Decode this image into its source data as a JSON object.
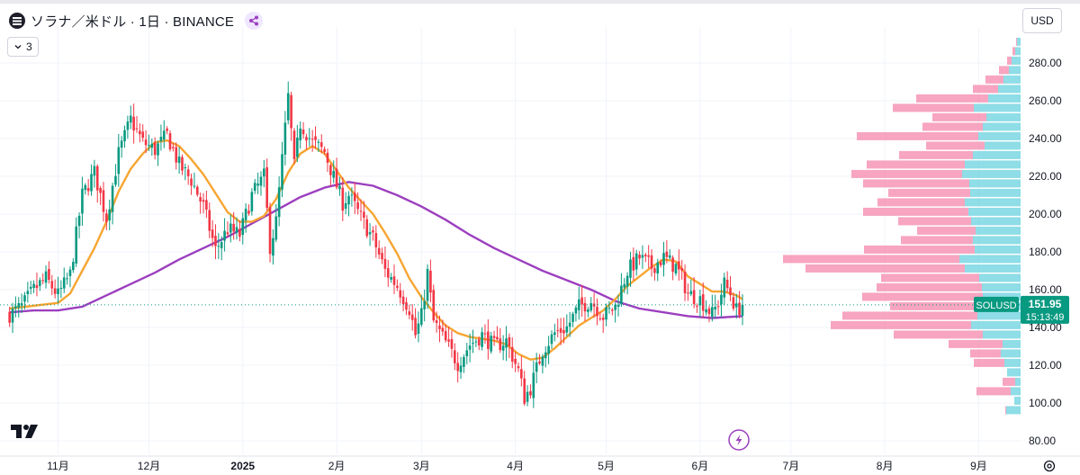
{
  "header": {
    "title": "ソラナ／米ドル · 1日 · BINANCE",
    "collapse_count": "3",
    "currency": "USD"
  },
  "colors": {
    "up": "#089981",
    "down": "#f23645",
    "ma_fast": "#f7a531",
    "ma_slow": "#9c3fbf",
    "vp_up": "#7ad7e3",
    "vp_down": "#f58eb0",
    "price_badge": "#089981"
  },
  "chart_data": {
    "type": "candlestick",
    "title": "ソラナ／米ドル · 1日 · BINANCE",
    "symbol": "SOLUSD",
    "last_price": "151.95",
    "countdown": "15:13:49",
    "ylim": [
      80,
      295
    ],
    "y_ticks": [
      "80.00",
      "100.00",
      "120.00",
      "140.00",
      "160.00",
      "180.00",
      "200.00",
      "220.00",
      "240.00",
      "260.00",
      "280.00"
    ],
    "x_ticks": [
      {
        "label": "11月",
        "index": 0
      },
      {
        "label": "12月",
        "index": 30
      },
      {
        "label": "2025",
        "index": 61
      },
      {
        "label": "2月",
        "index": 92
      },
      {
        "label": "3月",
        "index": 120
      },
      {
        "label": "4月",
        "index": 151
      },
      {
        "label": "5月",
        "index": 181
      },
      {
        "label": "6月",
        "index": 212
      },
      {
        "label": "7月",
        "index": 242
      },
      {
        "label": "8月",
        "index": 273
      },
      {
        "label": "9月",
        "index": 304
      }
    ],
    "anchors": [
      [
        -16,
        147
      ],
      [
        -12,
        151
      ],
      [
        -8,
        160
      ],
      [
        -4,
        166
      ],
      [
        0,
        157
      ],
      [
        4,
        168
      ],
      [
        8,
        210
      ],
      [
        12,
        222
      ],
      [
        16,
        198
      ],
      [
        20,
        232
      ],
      [
        24,
        250
      ],
      [
        28,
        238
      ],
      [
        32,
        234
      ],
      [
        36,
        242
      ],
      [
        40,
        226
      ],
      [
        44,
        218
      ],
      [
        48,
        204
      ],
      [
        52,
        181
      ],
      [
        56,
        192
      ],
      [
        60,
        189
      ],
      [
        64,
        210
      ],
      [
        68,
        220
      ],
      [
        70,
        183
      ],
      [
        72,
        196
      ],
      [
        76,
        262
      ],
      [
        78,
        225
      ],
      [
        80,
        248
      ],
      [
        84,
        238
      ],
      [
        88,
        233
      ],
      [
        90,
        224
      ],
      [
        92,
        215
      ],
      [
        94,
        206
      ],
      [
        96,
        210
      ],
      [
        100,
        198
      ],
      [
        104,
        187
      ],
      [
        108,
        170
      ],
      [
        112,
        162
      ],
      [
        116,
        150
      ],
      [
        118,
        136
      ],
      [
        120,
        146
      ],
      [
        122,
        169
      ],
      [
        124,
        143
      ],
      [
        128,
        132
      ],
      [
        132,
        121
      ],
      [
        136,
        131
      ],
      [
        140,
        136
      ],
      [
        144,
        130
      ],
      [
        148,
        133
      ],
      [
        152,
        117
      ],
      [
        154,
        103
      ],
      [
        156,
        108
      ],
      [
        160,
        128
      ],
      [
        164,
        137
      ],
      [
        168,
        140
      ],
      [
        172,
        151
      ],
      [
        176,
        154
      ],
      [
        180,
        146
      ],
      [
        184,
        151
      ],
      [
        188,
        170
      ],
      [
        192,
        177
      ],
      [
        196,
        172
      ],
      [
        200,
        177
      ],
      [
        204,
        172
      ],
      [
        206,
        166
      ],
      [
        208,
        158
      ],
      [
        212,
        155
      ],
      [
        216,
        147
      ],
      [
        218,
        153
      ],
      [
        220,
        163
      ],
      [
        222,
        158
      ],
      [
        224,
        149
      ],
      [
        226,
        151.95
      ]
    ],
    "ma_fast_points": [
      [
        -16,
        150
      ],
      [
        0,
        153
      ],
      [
        4,
        158
      ],
      [
        8,
        170
      ],
      [
        12,
        182
      ],
      [
        16,
        196
      ],
      [
        20,
        212
      ],
      [
        24,
        224
      ],
      [
        28,
        232
      ],
      [
        32,
        238
      ],
      [
        36,
        239
      ],
      [
        40,
        236
      ],
      [
        44,
        229
      ],
      [
        48,
        221
      ],
      [
        52,
        211
      ],
      [
        56,
        201
      ],
      [
        60,
        196
      ],
      [
        64,
        196
      ],
      [
        68,
        199
      ],
      [
        72,
        208
      ],
      [
        76,
        222
      ],
      [
        80,
        232
      ],
      [
        84,
        236
      ],
      [
        88,
        232
      ],
      [
        92,
        223
      ],
      [
        96,
        214
      ],
      [
        100,
        207
      ],
      [
        104,
        200
      ],
      [
        108,
        190
      ],
      [
        112,
        179
      ],
      [
        116,
        166
      ],
      [
        120,
        156
      ],
      [
        124,
        148
      ],
      [
        128,
        141
      ],
      [
        132,
        137
      ],
      [
        136,
        135
      ],
      [
        140,
        134
      ],
      [
        144,
        133
      ],
      [
        148,
        131
      ],
      [
        152,
        126
      ],
      [
        156,
        123
      ],
      [
        160,
        124
      ],
      [
        164,
        129
      ],
      [
        168,
        135
      ],
      [
        172,
        141
      ],
      [
        176,
        145
      ],
      [
        180,
        149
      ],
      [
        184,
        155
      ],
      [
        188,
        162
      ],
      [
        192,
        167
      ],
      [
        196,
        172
      ],
      [
        200,
        176
      ],
      [
        204,
        175
      ],
      [
        208,
        167
      ],
      [
        212,
        163
      ],
      [
        216,
        159
      ],
      [
        220,
        159
      ],
      [
        224,
        157
      ],
      [
        226,
        155
      ]
    ],
    "ma_slow_points": [
      [
        -16,
        148
      ],
      [
        -8,
        149
      ],
      [
        0,
        149
      ],
      [
        8,
        151
      ],
      [
        16,
        157
      ],
      [
        24,
        163
      ],
      [
        32,
        169
      ],
      [
        40,
        176
      ],
      [
        48,
        182
      ],
      [
        56,
        188
      ],
      [
        64,
        195
      ],
      [
        72,
        202
      ],
      [
        80,
        209
      ],
      [
        88,
        214
      ],
      [
        96,
        217
      ],
      [
        104,
        215
      ],
      [
        112,
        210
      ],
      [
        120,
        204
      ],
      [
        128,
        197
      ],
      [
        136,
        189
      ],
      [
        144,
        182
      ],
      [
        152,
        176
      ],
      [
        160,
        170
      ],
      [
        168,
        165
      ],
      [
        176,
        160
      ],
      [
        184,
        154
      ],
      [
        192,
        150
      ],
      [
        200,
        148
      ],
      [
        208,
        146
      ],
      [
        216,
        145
      ],
      [
        226,
        146
      ]
    ],
    "volume_profile": [
      [
        96,
        16,
        1
      ],
      [
        101,
        7,
        0
      ],
      [
        106,
        11,
        38
      ],
      [
        111,
        6,
        14
      ],
      [
        116,
        15,
        0
      ],
      [
        121,
        18,
        34
      ],
      [
        126,
        22,
        34
      ],
      [
        131,
        20,
        60
      ],
      [
        136,
        42,
        99
      ],
      [
        141,
        55,
        156
      ],
      [
        146,
        48,
        150
      ],
      [
        151,
        45,
        100
      ],
      [
        156,
        42,
        134
      ],
      [
        161,
        43,
        117
      ],
      [
        166,
        46,
        109
      ],
      [
        171,
        62,
        177
      ],
      [
        176,
        68,
        196
      ],
      [
        181,
        51,
        123
      ],
      [
        186,
        53,
        80
      ],
      [
        191,
        50,
        65
      ],
      [
        196,
        55,
        81
      ],
      [
        201,
        58,
        117
      ],
      [
        206,
        62,
        97
      ],
      [
        211,
        56,
        91
      ],
      [
        216,
        57,
        118
      ],
      [
        221,
        65,
        123
      ],
      [
        226,
        62,
        109
      ],
      [
        231,
        53,
        82
      ],
      [
        236,
        40,
        65
      ],
      [
        241,
        47,
        135
      ],
      [
        246,
        42,
        67
      ],
      [
        251,
        38,
        60
      ],
      [
        256,
        52,
        90
      ],
      [
        261,
        36,
        80
      ],
      [
        266,
        25,
        28
      ],
      [
        271,
        19,
        20
      ],
      [
        276,
        13,
        11
      ],
      [
        281,
        10,
        5
      ],
      [
        286,
        6,
        3
      ],
      [
        291,
        4,
        1
      ]
    ]
  }
}
